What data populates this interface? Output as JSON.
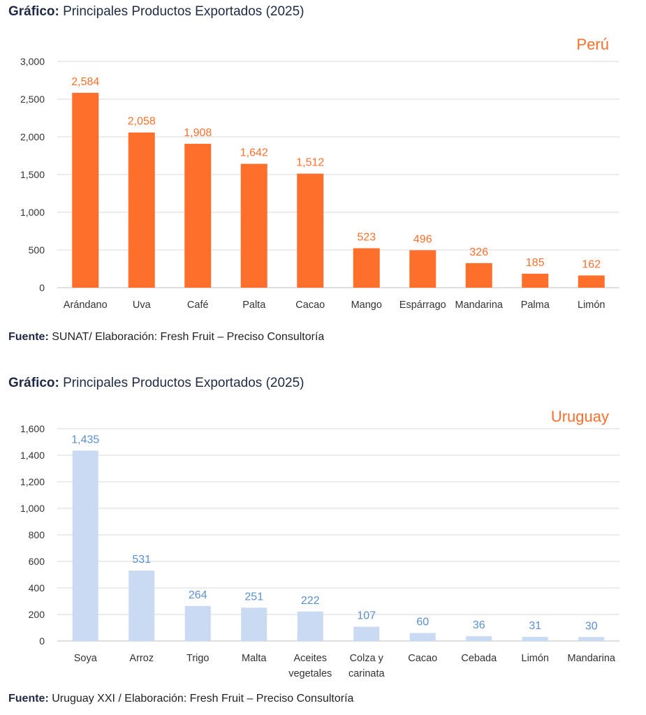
{
  "colors": {
    "peru": "#ff6f2c",
    "uruguay_bar": "#c9daf2",
    "uruguay_label": "#5b8fcf",
    "grid": "#d9d9d9"
  },
  "section1": {
    "heading_bold": "Gráfico:",
    "heading_text": " Principales Productos Exportados (2025)",
    "source_bold": "Fuente:",
    "source_text": " SUNAT/ Elaboración: Fresh Fruit – Preciso Consultoría"
  },
  "section2": {
    "heading_bold": "Gráfico:",
    "heading_text": " Principales Productos Exportados (2025)",
    "source_bold": "Fuente:",
    "source_text": "  Uruguay XXI / Elaboración: Fresh Fruit – Preciso Consultoría"
  },
  "chart_data": [
    {
      "type": "bar",
      "title": "Perú",
      "categories": [
        "Arándano",
        "Uva",
        "Café",
        "Palta",
        "Cacao",
        "Mango",
        "Espárrago",
        "Mandarina",
        "Palma",
        "Limón"
      ],
      "values": [
        2584,
        2058,
        1908,
        1642,
        1512,
        523,
        496,
        326,
        185,
        162
      ],
      "value_labels": [
        "2,584",
        "2,058",
        "1,908",
        "1,642",
        "1,512",
        "523",
        "496",
        "326",
        "185",
        "162"
      ],
      "yticks": [
        0,
        500,
        1000,
        1500,
        2000,
        2500,
        3000
      ],
      "ytick_labels": [
        "0",
        "500",
        "1,000",
        "1,500",
        "2,000",
        "2,500",
        "3,000"
      ],
      "ylim": [
        0,
        3000
      ],
      "xlabel": "",
      "ylabel": "",
      "grid": true
    },
    {
      "type": "bar",
      "title": "Uruguay",
      "categories": [
        [
          "Soya"
        ],
        [
          "Arroz"
        ],
        [
          "Trigo"
        ],
        [
          "Malta"
        ],
        [
          "Aceites",
          "vegetales"
        ],
        [
          "Colza y",
          "carinata"
        ],
        [
          "Cacao"
        ],
        [
          "Cebada"
        ],
        [
          "Limón"
        ],
        [
          "Mandarina"
        ]
      ],
      "values": [
        1435,
        531,
        264,
        251,
        222,
        107,
        60,
        36,
        31,
        30
      ],
      "value_labels": [
        "1,435",
        "531",
        "264",
        "251",
        "222",
        "107",
        "60",
        "36",
        "31",
        "30"
      ],
      "yticks": [
        0,
        200,
        400,
        600,
        800,
        1000,
        1200,
        1400,
        1600
      ],
      "ytick_labels": [
        "0",
        "200",
        "400",
        "600",
        "800",
        "1,000",
        "1,200",
        "1,400",
        "1,600"
      ],
      "ylim": [
        0,
        1600
      ],
      "xlabel": "",
      "ylabel": "",
      "grid": true
    }
  ]
}
